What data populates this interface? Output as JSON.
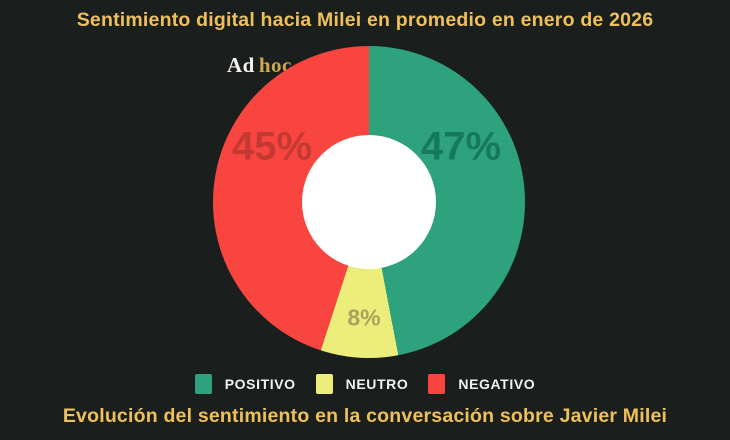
{
  "header": {
    "title": "Sentimiento digital hacia Milei en promedio en enero de 2026"
  },
  "brand": {
    "part1": "Ad",
    "part2": "hoc"
  },
  "chart_data": {
    "type": "pie",
    "subtype": "donut",
    "title": "Sentimiento digital hacia Milei en promedio en enero de 2026",
    "start_angle_deg": 0,
    "direction": "clockwise",
    "legend_position": "bottom",
    "slices": [
      {
        "label": "POSITIVO",
        "value": 47,
        "display": "47%",
        "color": "#2ea17d",
        "label_color": "#15795a"
      },
      {
        "label": "NEUTRO",
        "value": 8,
        "display": "8%",
        "color": "#eded7c",
        "label_color": "#a8a35c"
      },
      {
        "label": "NEGATIVO",
        "value": 45,
        "display": "45%",
        "color": "#f9453f",
        "label_color": "#c43a33"
      }
    ]
  },
  "footer": {
    "title": "Evolución del sentimiento en la conversación sobre Javier Milei"
  },
  "colors": {
    "background": "#1a1e1d",
    "accent_gold": "#eec05c",
    "hole": "#ffffff",
    "legend_text": "#f2f2f2"
  }
}
